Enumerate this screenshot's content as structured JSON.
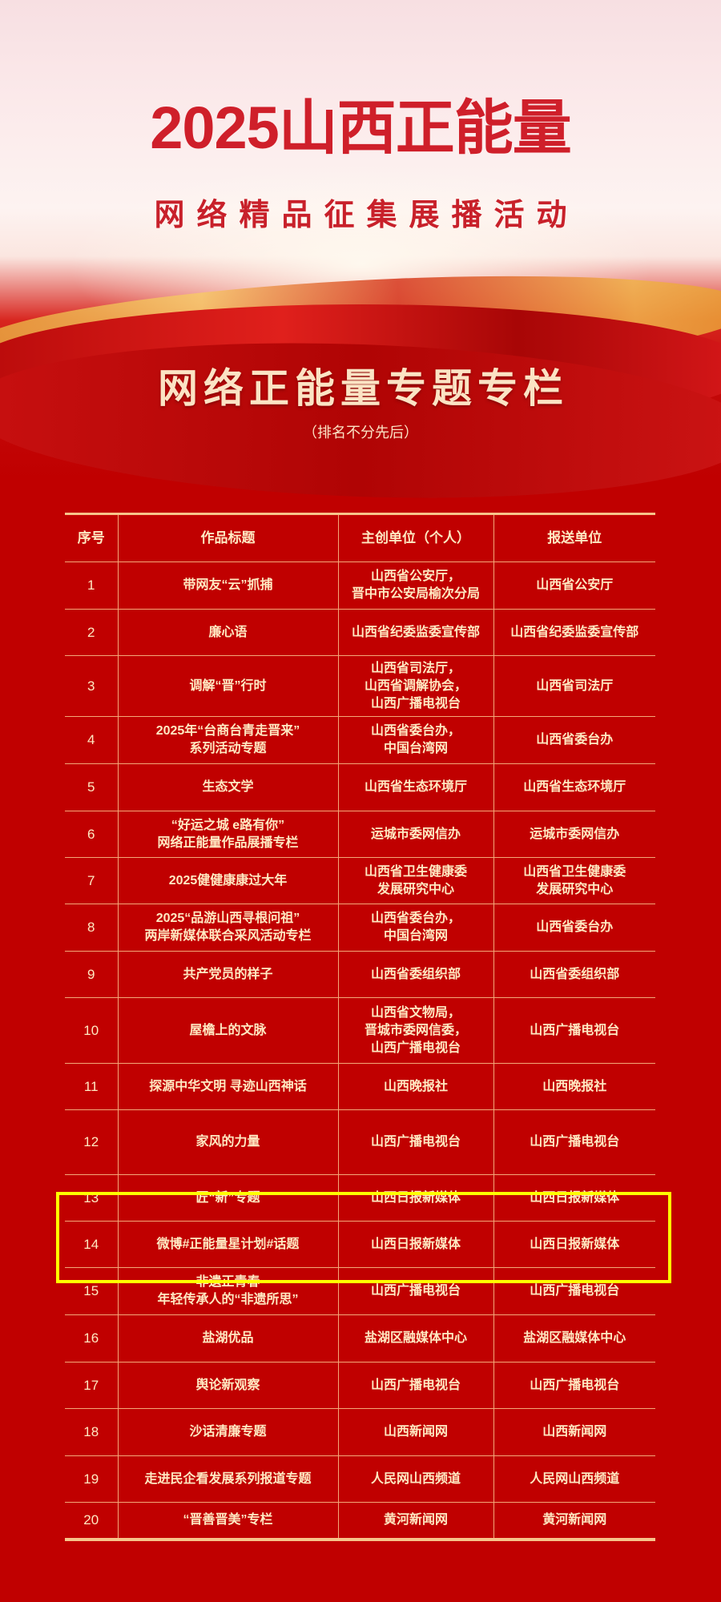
{
  "header": {
    "title": "2025山西正能量",
    "subtitle": "网络精品征集展播活动",
    "section_title": "网络正能量专题专栏",
    "note": "（排名不分先后）"
  },
  "colors": {
    "background_red": "#c00000",
    "title_red": "#cf1f2a",
    "table_text": "#ffe9c2",
    "table_lines": "#f3a878",
    "highlight": "#ffff00"
  },
  "table": {
    "columns": [
      "序号",
      "作品标题",
      "主创单位（个人）",
      "报送单位"
    ],
    "rows": [
      {
        "no": "1",
        "title": "带网友“云”抓捕",
        "creator": "山西省公安厅，\n晋中市公安局榆次分局",
        "submitter": "山西省公安厅"
      },
      {
        "no": "2",
        "title": "廉心语",
        "creator": "山西省纪委监委宣传部",
        "submitter": "山西省纪委监委宣传部"
      },
      {
        "no": "3",
        "title": "调解“晋”行时",
        "creator": "山西省司法厅，\n山西省调解协会，\n山西广播电视台",
        "submitter": "山西省司法厅"
      },
      {
        "no": "4",
        "title": "2025年“台商台青走晋来”\n系列活动专题",
        "creator": "山西省委台办，\n中国台湾网",
        "submitter": "山西省委台办"
      },
      {
        "no": "5",
        "title": "生态文学",
        "creator": "山西省生态环境厅",
        "submitter": "山西省生态环境厅"
      },
      {
        "no": "6",
        "title": "“好运之城 e路有你”\n网络正能量作品展播专栏",
        "creator": "运城市委网信办",
        "submitter": "运城市委网信办"
      },
      {
        "no": "7",
        "title": "2025健健康康过大年",
        "creator": "山西省卫生健康委\n发展研究中心",
        "submitter": "山西省卫生健康委\n发展研究中心"
      },
      {
        "no": "8",
        "title": "2025“品游山西寻根问祖”\n两岸新媒体联合采风活动专栏",
        "creator": "山西省委台办，\n中国台湾网",
        "submitter": "山西省委台办"
      },
      {
        "no": "9",
        "title": "共产党员的样子",
        "creator": "山西省委组织部",
        "submitter": "山西省委组织部"
      },
      {
        "no": "10",
        "title": "屋檐上的文脉",
        "creator": "山西省文物局，\n晋城市委网信委，\n山西广播电视台",
        "submitter": "山西广播电视台"
      },
      {
        "no": "11",
        "title": "探源中华文明 寻迹山西神话",
        "creator": "山西晚报社",
        "submitter": "山西晚报社"
      },
      {
        "no": "12",
        "title": "家风的力量",
        "creator": "山西广播电视台",
        "submitter": "山西广播电视台"
      },
      {
        "no": "13",
        "title": "匠“新”专题",
        "creator": "山西日报新媒体",
        "submitter": "山西日报新媒体"
      },
      {
        "no": "14",
        "title": "微博#正能量星计划#话题",
        "creator": "山西日报新媒体",
        "submitter": "山西日报新媒体"
      },
      {
        "no": "15",
        "title": "非遗正青春\n年轻传承人的“非遗所思”",
        "creator": "山西广播电视台",
        "submitter": "山西广播电视台"
      },
      {
        "no": "16",
        "title": "盐湖优品",
        "creator": "盐湖区融媒体中心",
        "submitter": "盐湖区融媒体中心"
      },
      {
        "no": "17",
        "title": "舆论新观察",
        "creator": "山西广播电视台",
        "submitter": "山西广播电视台"
      },
      {
        "no": "18",
        "title": "沙话清廉专题",
        "creator": "山西新闻网",
        "submitter": "山西新闻网"
      },
      {
        "no": "19",
        "title": "走进民企看发展系列报道专题",
        "creator": "人民网山西频道",
        "submitter": "人民网山西频道"
      },
      {
        "no": "20",
        "title": "“晋善晋美”专栏",
        "creator": "黄河新闻网",
        "submitter": "黄河新闻网"
      }
    ]
  }
}
